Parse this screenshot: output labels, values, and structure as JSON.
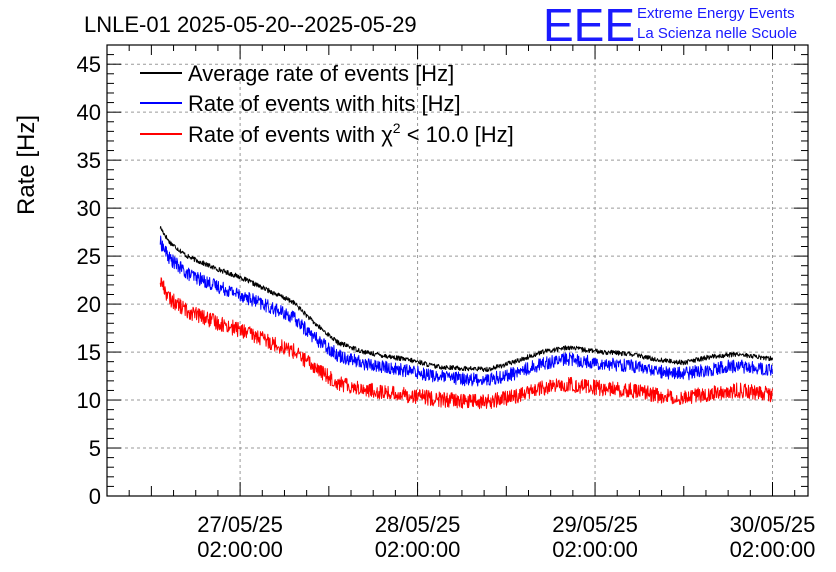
{
  "chart_data": {
    "type": "line",
    "title": "LNLE-01 2025-05-20--2025-05-29",
    "xlabel": "",
    "ylabel": "Rate [Hz]",
    "ylim": [
      0,
      47
    ],
    "yticks": [
      0,
      5,
      10,
      15,
      20,
      25,
      30,
      35,
      40,
      45
    ],
    "ytick_labels": [
      "0",
      "5",
      "10",
      "15",
      "20",
      "25",
      "30",
      "35",
      "40",
      "45"
    ],
    "xlim_days": [
      -0.75,
      3.2
    ],
    "xticks_days": [
      0,
      1,
      2,
      3
    ],
    "xtick_labels": [
      {
        "date": "27/05/25",
        "time": "02:00:00"
      },
      {
        "date": "28/05/25",
        "time": "02:00:00"
      },
      {
        "date": "29/05/25",
        "time": "02:00:00"
      },
      {
        "date": "30/05/25",
        "time": "02:00:00"
      }
    ],
    "grid": true,
    "legend_position": "top-left",
    "series": [
      {
        "name": "Average rate of events [Hz]",
        "color": "#000000",
        "noise": 0.25,
        "x": [
          -0.45,
          -0.4,
          -0.3,
          -0.15,
          0.0,
          0.15,
          0.3,
          0.42,
          0.55,
          0.7,
          0.85,
          1.0,
          1.1,
          1.25,
          1.4,
          1.55,
          1.7,
          1.85,
          1.95,
          2.05,
          2.2,
          2.35,
          2.5,
          2.65,
          2.8,
          2.95,
          3.0
        ],
        "y": [
          28.0,
          26.5,
          25.0,
          23.8,
          22.8,
          21.5,
          20.2,
          18.0,
          16.0,
          15.0,
          14.5,
          14.0,
          13.5,
          13.3,
          13.2,
          14.0,
          15.0,
          15.5,
          15.2,
          15.0,
          14.8,
          14.2,
          13.9,
          14.5,
          14.8,
          14.4,
          14.3
        ]
      },
      {
        "name": "Rate of events with hits [Hz]",
        "color": "#0000ff",
        "noise": 0.7,
        "x": [
          -0.45,
          -0.4,
          -0.3,
          -0.15,
          0.0,
          0.15,
          0.3,
          0.42,
          0.55,
          0.7,
          0.85,
          1.0,
          1.1,
          1.25,
          1.4,
          1.55,
          1.7,
          1.85,
          1.95,
          2.05,
          2.2,
          2.35,
          2.5,
          2.65,
          2.8,
          2.95,
          3.0
        ],
        "y": [
          26.5,
          24.8,
          23.2,
          22.0,
          21.0,
          19.8,
          18.6,
          16.5,
          14.7,
          13.8,
          13.3,
          12.9,
          12.5,
          12.2,
          12.1,
          12.8,
          13.8,
          14.3,
          14.0,
          13.8,
          13.6,
          13.0,
          12.7,
          13.2,
          13.6,
          13.2,
          13.0
        ]
      },
      {
        "name": "Rate of events with χ² < 10.0 [Hz]",
        "color": "#ff0000",
        "noise": 0.8,
        "x": [
          -0.45,
          -0.4,
          -0.3,
          -0.15,
          0.0,
          0.15,
          0.3,
          0.42,
          0.55,
          0.7,
          0.85,
          1.0,
          1.1,
          1.25,
          1.4,
          1.55,
          1.7,
          1.85,
          1.95,
          2.05,
          2.2,
          2.35,
          2.5,
          2.65,
          2.8,
          2.95,
          3.0
        ],
        "y": [
          22.5,
          20.6,
          19.3,
          18.2,
          17.3,
          16.2,
          15.1,
          13.4,
          11.8,
          11.1,
          10.7,
          10.4,
          10.1,
          9.9,
          9.8,
          10.4,
          11.2,
          11.6,
          11.4,
          11.2,
          11.0,
          10.5,
          10.3,
          10.7,
          11.0,
          10.7,
          10.5
        ]
      }
    ],
    "legend": {
      "entries": [
        {
          "text": "Average rate of events [Hz]",
          "color": "#000000"
        },
        {
          "text": "Rate of events with hits [Hz]",
          "color": "#0000ff"
        },
        {
          "text_pre": "Rate of events with ",
          "symbol": "χ",
          "sup": "2",
          "text_post": " < 10.0 [Hz]",
          "color": "#ff0000"
        }
      ]
    }
  },
  "logo": {
    "mark": "EEE",
    "line1": "Extreme Energy Events",
    "line2": "La Scienza nelle Scuole",
    "color": "#1a1aff"
  }
}
